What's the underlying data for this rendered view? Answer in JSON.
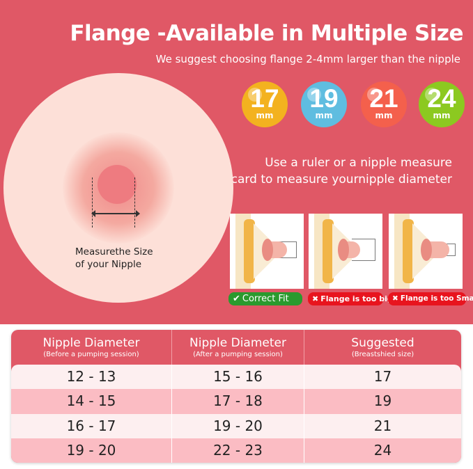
{
  "title": "Flange -Available in Multiple Size",
  "subtitle": "We suggest choosing flange 2-4mm larger than the nipple",
  "sizes": [
    {
      "value": "17",
      "unit": "mm",
      "color": "#f3b21f"
    },
    {
      "value": "19",
      "unit": "mm",
      "color": "#5fbde0"
    },
    {
      "value": "21",
      "unit": "mm",
      "color": "#f4604c"
    },
    {
      "value": "24",
      "unit": "mm",
      "color": "#8cc920"
    }
  ],
  "hint": {
    "line1": "Use a ruler or a nipple measure",
    "line2": "card to measure yournipple diameter"
  },
  "measure": {
    "line1": "Measurethe Size",
    "line2": "of your Nipple"
  },
  "fits": [
    {
      "label": "Correct Fit",
      "icon": "check-icon",
      "color": "#2a9a2e"
    },
    {
      "label": "Flange is too big",
      "icon": "x-icon",
      "color": "#e8141e"
    },
    {
      "label": "Flange is too Small",
      "icon": "x-icon",
      "color": "#e8141e"
    }
  ],
  "table": {
    "headers": [
      {
        "title": "Nipple Diameter",
        "note": "(Before a pumping session)"
      },
      {
        "title": "Nipple Diameter",
        "note": "(After a pumping session)"
      },
      {
        "title": "Suggested",
        "note": "(Breastshied size)"
      }
    ],
    "rows": [
      [
        "12 - 13",
        "15 - 16",
        "17"
      ],
      [
        "14 - 15",
        "17 - 18",
        "19"
      ],
      [
        "16 - 17",
        "19 - 20",
        "21"
      ],
      [
        "19 - 20",
        "22 - 23",
        "24"
      ]
    ]
  }
}
